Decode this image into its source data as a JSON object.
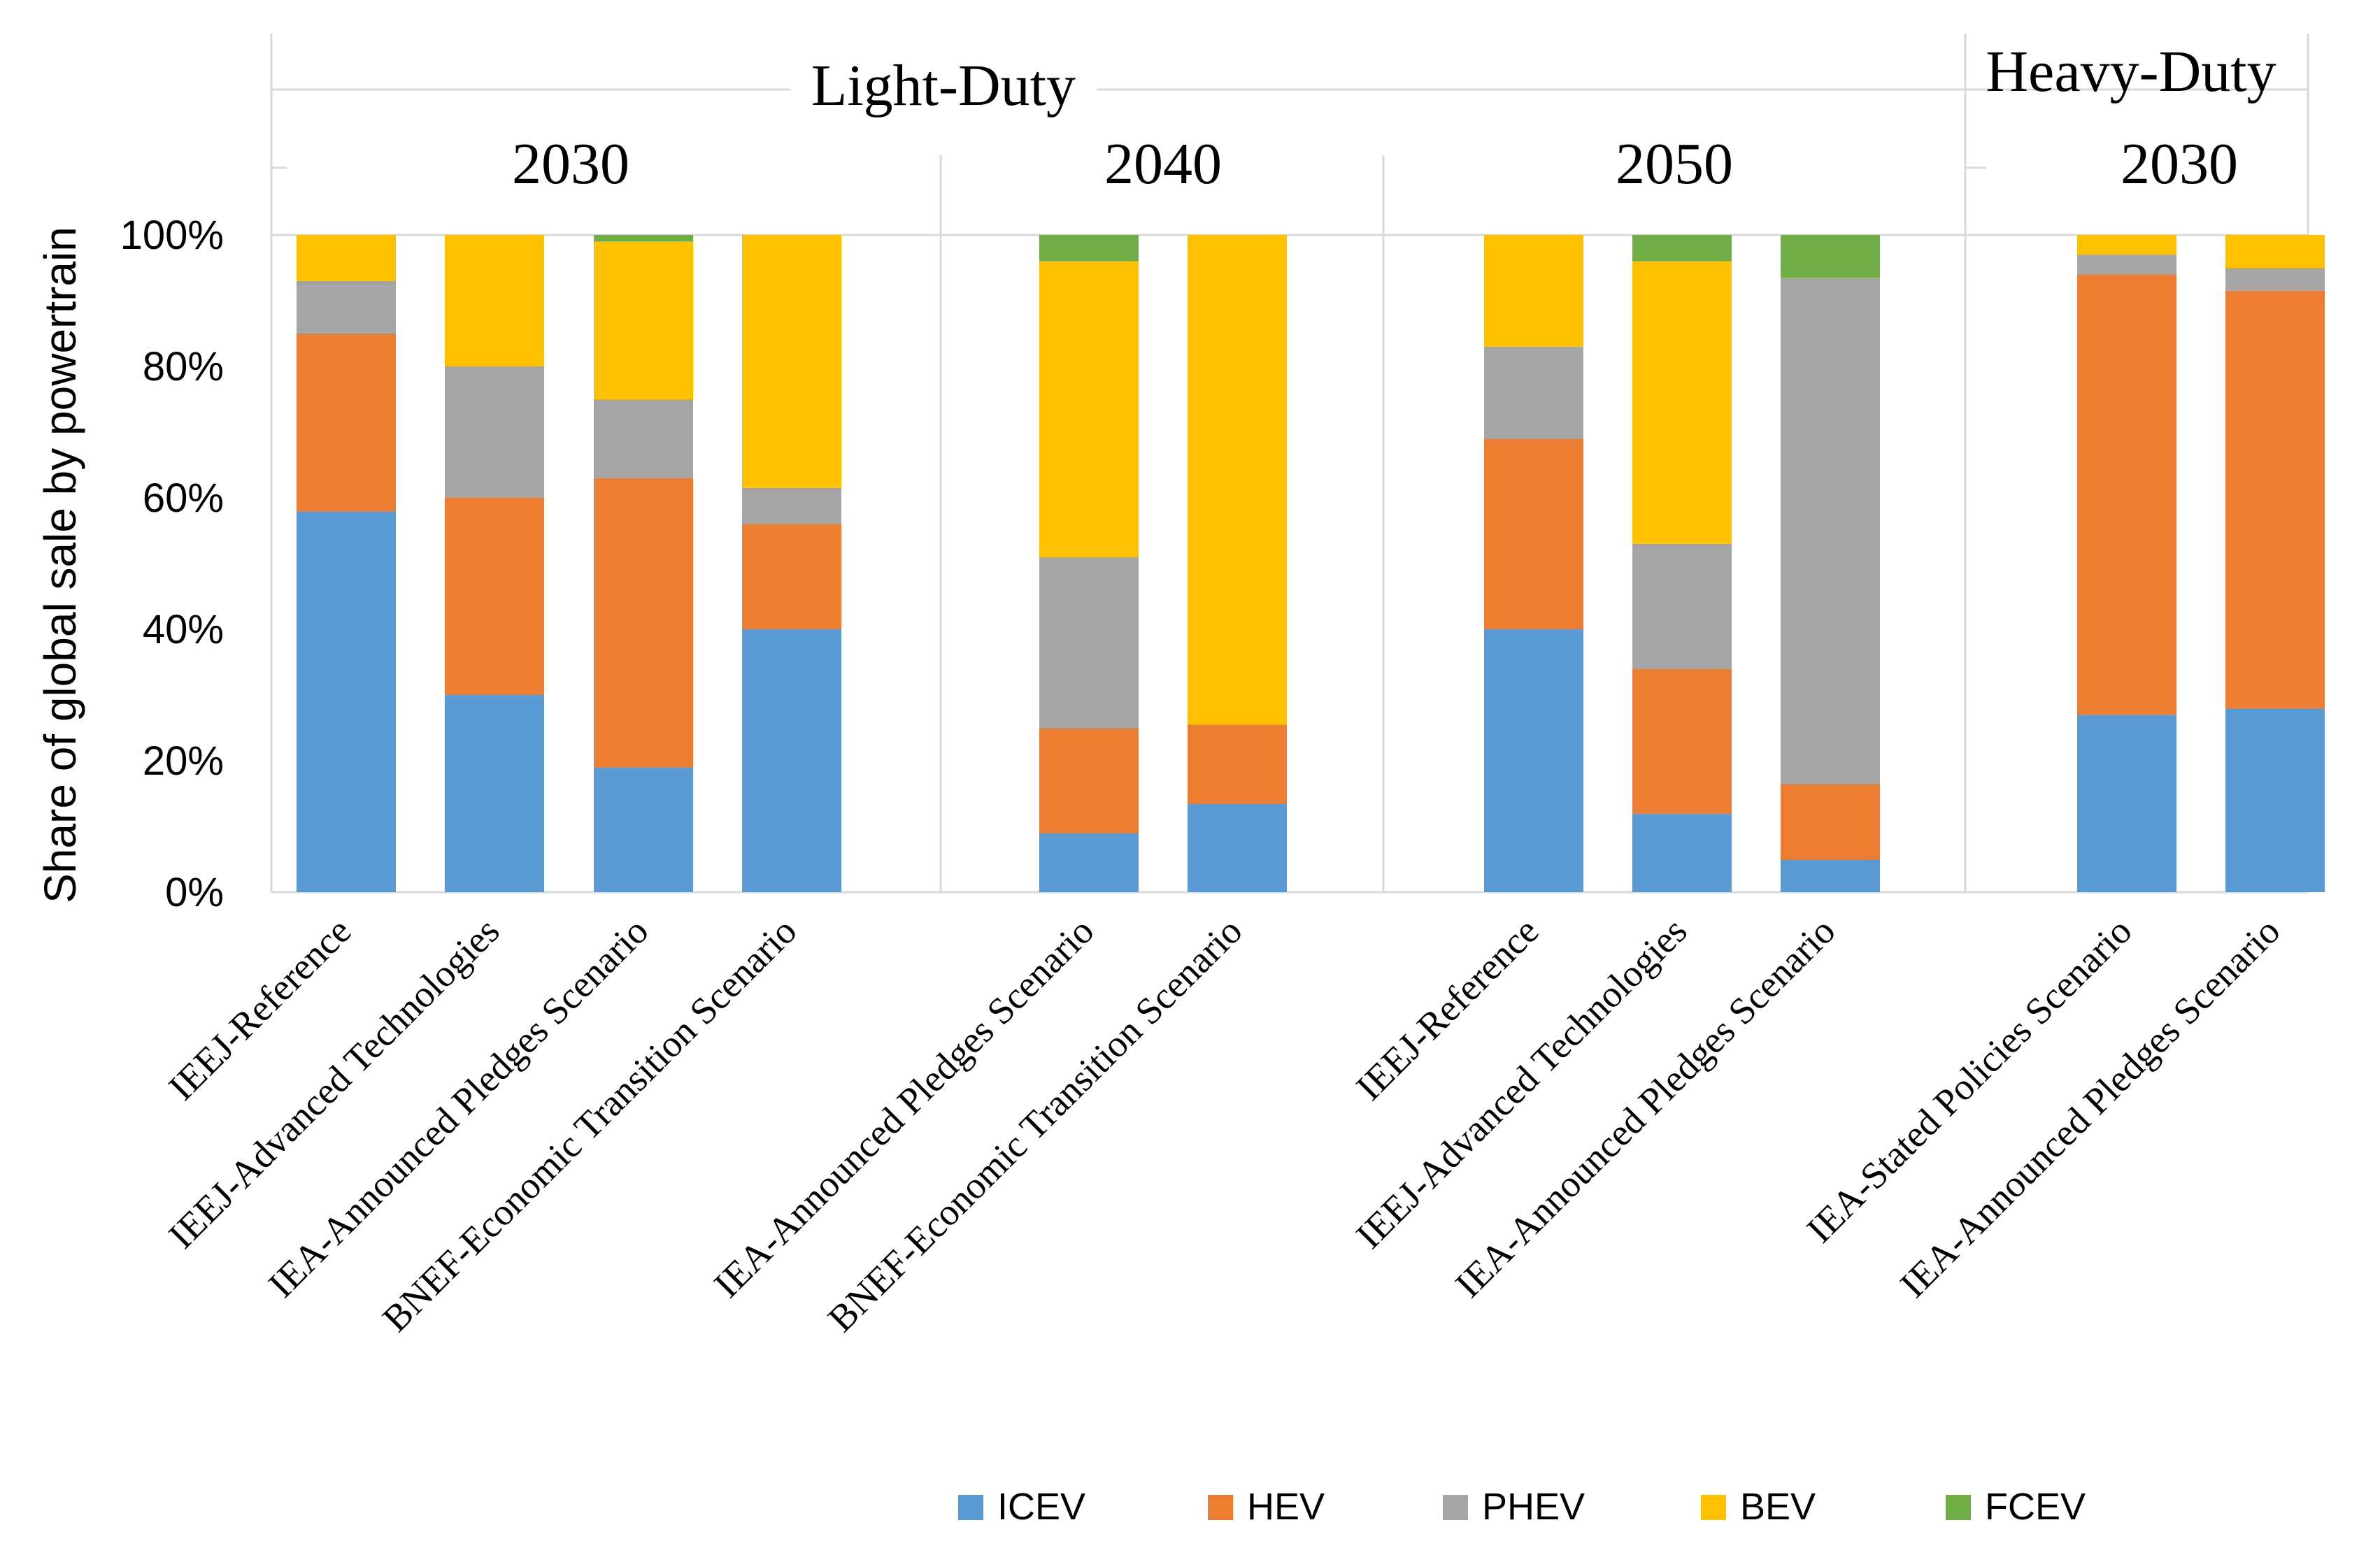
{
  "chart_data": {
    "type": "bar",
    "stacked": true,
    "ylabel": "Share of global sale by powertrain",
    "ylim": [
      0,
      100
    ],
    "yticks": [
      "0%",
      "20%",
      "40%",
      "60%",
      "80%",
      "100%"
    ],
    "groups": [
      {
        "title": "Light-Duty",
        "subgroups": [
          "2030",
          "2040",
          "2050"
        ]
      },
      {
        "title": "Heavy-Duty",
        "subgroups": [
          "2030"
        ]
      }
    ],
    "categories": [
      {
        "label": "IEEJ-Reference",
        "group": "Light-Duty",
        "year": "2030"
      },
      {
        "label": "IEEJ-Advanced Technologies",
        "group": "Light-Duty",
        "year": "2030"
      },
      {
        "label": "IEA-Announced Pledges Scenario",
        "group": "Light-Duty",
        "year": "2030"
      },
      {
        "label": "BNEF-Economic Transition Scenario",
        "group": "Light-Duty",
        "year": "2030"
      },
      {
        "label": "IEA-Announced Pledges Scenario",
        "group": "Light-Duty",
        "year": "2040"
      },
      {
        "label": "BNEF-Economic Transition Scenario",
        "group": "Light-Duty",
        "year": "2040"
      },
      {
        "label": "IEEJ-Reference",
        "group": "Light-Duty",
        "year": "2050"
      },
      {
        "label": "IEEJ-Advanced Technologies",
        "group": "Light-Duty",
        "year": "2050"
      },
      {
        "label": "IEA-Announced Pledges Scenario",
        "group": "Light-Duty",
        "year": "2050"
      },
      {
        "label": "IEA-Stated Policies Scenario",
        "group": "Heavy-Duty",
        "year": "2030"
      },
      {
        "label": "IEA-Announced Pledges Scenario",
        "group": "Heavy-Duty",
        "year": "2030"
      }
    ],
    "series": [
      {
        "name": "ICEV",
        "color": "#5b9bd5",
        "values": [
          58,
          30,
          19,
          40,
          9,
          13.5,
          40,
          12,
          5,
          27,
          28
        ]
      },
      {
        "name": "HEV",
        "color": "#ed7d31",
        "values": [
          27,
          30,
          44,
          16,
          16,
          12,
          29,
          22,
          11.5,
          67,
          63.5
        ]
      },
      {
        "name": "PHEV",
        "color": "#a5a5a5",
        "values": [
          8,
          20,
          12,
          5.5,
          26,
          0,
          14,
          19,
          77,
          3,
          3.5
        ]
      },
      {
        "name": "BEV",
        "color": "#ffc000",
        "values": [
          7,
          20,
          24,
          38.5,
          45,
          74.5,
          17,
          43,
          0,
          3,
          5
        ]
      },
      {
        "name": "FCEV",
        "color": "#70ad47",
        "values": [
          0,
          0,
          1,
          0,
          4,
          0,
          0,
          4,
          6.5,
          0,
          0
        ]
      }
    ],
    "legend_position": "bottom"
  }
}
